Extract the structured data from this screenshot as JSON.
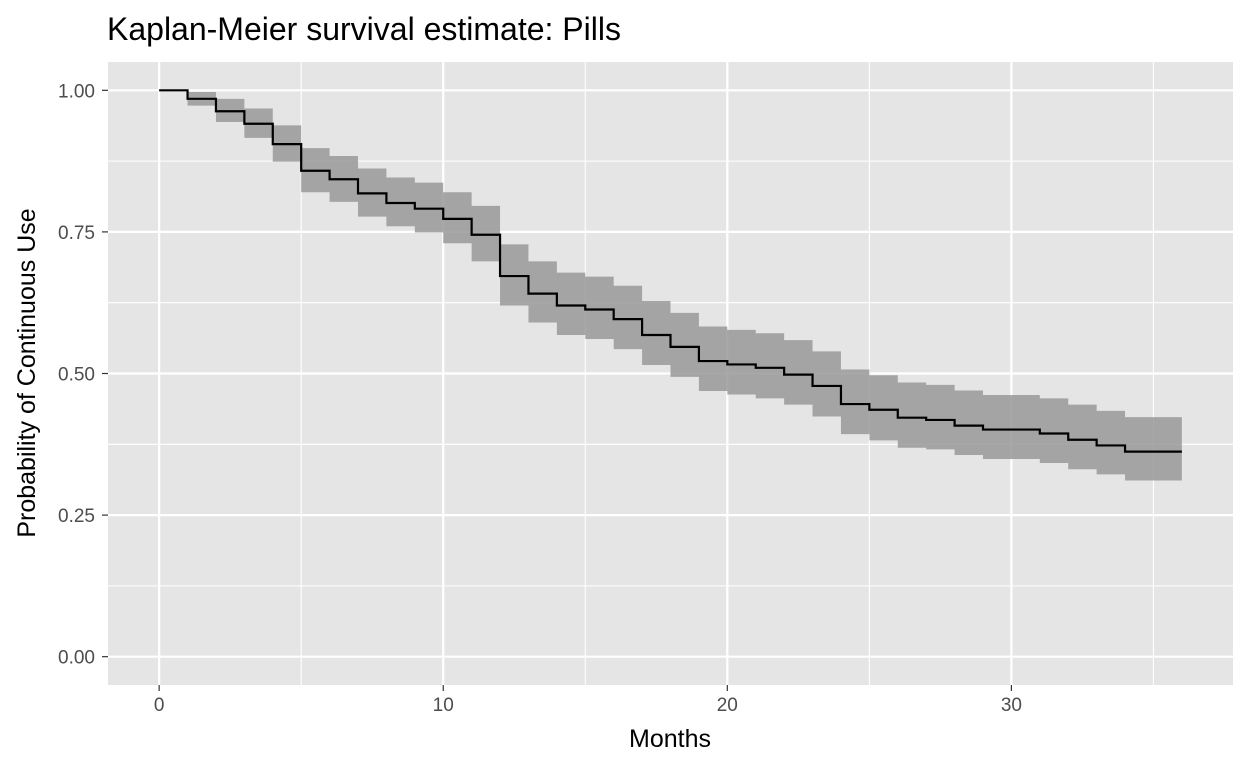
{
  "chart_data": {
    "type": "line",
    "subtype": "kaplan-meier-step",
    "title": "Kaplan-Meier survival estimate: Pills",
    "xlabel": "Months",
    "ylabel": "Probability of Continuous Use",
    "xlim": [
      -1.8,
      37.8
    ],
    "ylim": [
      -0.05,
      1.05
    ],
    "x_ticks": [
      0,
      10,
      20,
      30
    ],
    "x_tick_labels": [
      "0",
      "10",
      "20",
      "30"
    ],
    "y_ticks": [
      0,
      0.25,
      0.5,
      0.75,
      1.0
    ],
    "y_tick_labels": [
      "0.00",
      "0.25",
      "0.50",
      "0.75",
      "1.00"
    ],
    "grid": true,
    "series": [
      {
        "name": "survival",
        "x": [
          0,
          1,
          2,
          3,
          4,
          5,
          6,
          7,
          8,
          9,
          10,
          11,
          12,
          13,
          14,
          15,
          16,
          17,
          18,
          19,
          20,
          21,
          22,
          23,
          24,
          25,
          26,
          27,
          28,
          29,
          30,
          31,
          32,
          33,
          34,
          35,
          36
        ],
        "y": [
          1.0,
          0.985,
          0.963,
          0.941,
          0.905,
          0.858,
          0.843,
          0.818,
          0.801,
          0.791,
          0.773,
          0.745,
          0.672,
          0.641,
          0.62,
          0.613,
          0.596,
          0.568,
          0.547,
          0.522,
          0.516,
          0.51,
          0.498,
          0.478,
          0.446,
          0.436,
          0.422,
          0.418,
          0.408,
          0.401,
          0.401,
          0.394,
          0.383,
          0.373,
          0.362,
          0.362,
          0.362
        ],
        "lower": [
          1.0,
          0.973,
          0.944,
          0.916,
          0.874,
          0.82,
          0.803,
          0.777,
          0.76,
          0.749,
          0.73,
          0.698,
          0.62,
          0.59,
          0.568,
          0.561,
          0.543,
          0.515,
          0.494,
          0.469,
          0.463,
          0.456,
          0.445,
          0.424,
          0.393,
          0.382,
          0.369,
          0.366,
          0.356,
          0.349,
          0.349,
          0.342,
          0.331,
          0.322,
          0.311,
          0.311,
          0.311
        ],
        "upper": [
          1.0,
          0.997,
          0.985,
          0.968,
          0.938,
          0.898,
          0.884,
          0.862,
          0.846,
          0.837,
          0.82,
          0.796,
          0.728,
          0.698,
          0.678,
          0.671,
          0.655,
          0.628,
          0.607,
          0.583,
          0.577,
          0.571,
          0.559,
          0.539,
          0.507,
          0.497,
          0.484,
          0.48,
          0.47,
          0.462,
          0.462,
          0.456,
          0.445,
          0.434,
          0.423,
          0.423,
          0.423
        ]
      }
    ]
  },
  "colors": {
    "panel_background": "#e5e5e5",
    "grid_line": "#ffffff",
    "confidence_band": "#999999",
    "line": "#000000",
    "tick_text": "#4d4d4d",
    "tick_mark": "#333333"
  }
}
